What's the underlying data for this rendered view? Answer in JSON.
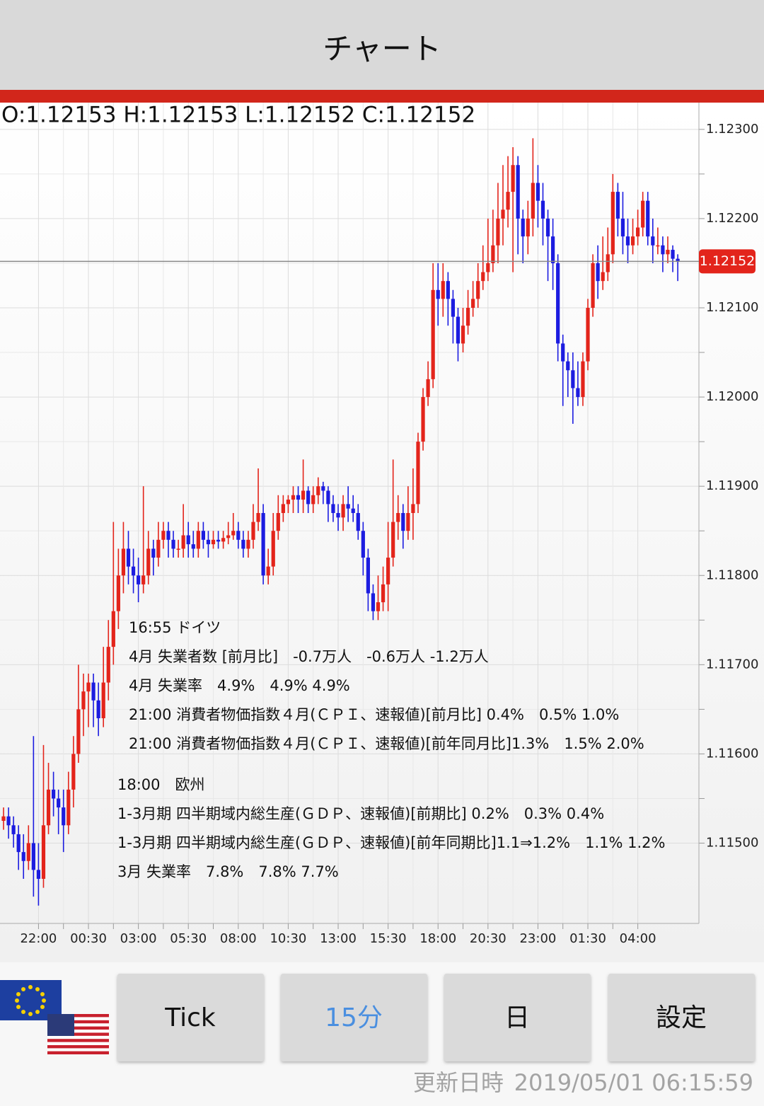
{
  "header": {
    "title": "チャート"
  },
  "chart_data": {
    "type": "candlestick",
    "ohlc_text": "O:1.12153 H:1.12153 L:1.12152 C:1.12152",
    "up_color": "#e3241b",
    "down_color": "#1c1ce0",
    "open": [
      1.11525,
      1.1153,
      1.1152,
      1.1151,
      1.1149,
      1.1148,
      1.115,
      1.1147,
      1.1146,
      1.1152,
      1.1156,
      1.1155,
      1.1154,
      1.1152,
      1.1156,
      1.116,
      1.1165,
      1.1167,
      1.1168,
      1.1166,
      1.1164,
      1.1168,
      1.1172,
      1.1176,
      1.118,
      1.1183,
      1.1181,
      1.118,
      1.1179,
      1.118,
      1.1183,
      1.1182,
      1.1184,
      1.1185,
      1.1184,
      1.1183,
      1.1183,
      1.11845,
      1.11835,
      1.1183,
      1.1185,
      1.1184,
      1.11835,
      1.1184,
      1.11838,
      1.11842,
      1.11845,
      1.1185,
      1.1184,
      1.1183,
      1.1184,
      1.1186,
      1.1187,
      1.118,
      1.1181,
      1.1185,
      1.1187,
      1.1188,
      1.11885,
      1.1189,
      1.11885,
      1.11895,
      1.1188,
      1.1189,
      1.119,
      1.11895,
      1.1188,
      1.1187,
      1.11865,
      1.1188,
      1.11875,
      1.1187,
      1.1185,
      1.1182,
      1.1178,
      1.1176,
      1.1177,
      1.1179,
      1.1182,
      1.1186,
      1.1187,
      1.1185,
      1.1187,
      1.1188,
      1.1195,
      1.12,
      1.1202,
      1.1212,
      1.1211,
      1.1213,
      1.1211,
      1.1209,
      1.1206,
      1.1208,
      1.121,
      1.1211,
      1.1213,
      1.1214,
      1.1215,
      1.1217,
      1.122,
      1.1221,
      1.1223,
      1.1226,
      1.122,
      1.1218,
      1.122,
      1.1224,
      1.1222,
      1.122,
      1.1218,
      1.1215,
      1.1206,
      1.1204,
      1.1203,
      1.1201,
      1.12,
      1.1204,
      1.121,
      1.1215,
      1.1213,
      1.1214,
      1.1216,
      1.1223,
      1.122,
      1.1218,
      1.1217,
      1.1218,
      1.1219,
      1.1222,
      1.1218,
      1.1217,
      1.1217,
      1.1216,
      1.12165,
      1.12155
    ],
    "high": [
      1.1154,
      1.1154,
      1.1153,
      1.1152,
      1.1151,
      1.1152,
      1.1162,
      1.115,
      1.1161,
      1.1159,
      1.1158,
      1.1156,
      1.1156,
      1.1158,
      1.1162,
      1.117,
      1.1169,
      1.1169,
      1.1169,
      1.1168,
      1.1172,
      1.1175,
      1.1186,
      1.1183,
      1.1186,
      1.1185,
      1.1183,
      1.1182,
      1.119,
      1.1185,
      1.1184,
      1.1186,
      1.1186,
      1.1186,
      1.1185,
      1.1184,
      1.1188,
      1.1186,
      1.1185,
      1.1186,
      1.1186,
      1.1185,
      1.1185,
      1.1185,
      1.1185,
      1.1186,
      1.1187,
      1.1186,
      1.1185,
      1.1185,
      1.1188,
      1.1192,
      1.1188,
      1.1183,
      1.1187,
      1.1189,
      1.1189,
      1.1189,
      1.119,
      1.119,
      1.1193,
      1.119,
      1.119,
      1.1191,
      1.11905,
      1.119,
      1.1189,
      1.1188,
      1.1189,
      1.119,
      1.1189,
      1.1188,
      1.1186,
      1.1183,
      1.1179,
      1.118,
      1.1181,
      1.1186,
      1.1193,
      1.1189,
      1.1188,
      1.119,
      1.1192,
      1.1196,
      1.1201,
      1.1204,
      1.1215,
      1.1215,
      1.1215,
      1.1214,
      1.1212,
      1.121,
      1.121,
      1.1212,
      1.1213,
      1.1215,
      1.1217,
      1.122,
      1.1221,
      1.1224,
      1.1226,
      1.1227,
      1.1228,
      1.1227,
      1.1221,
      1.1222,
      1.1229,
      1.1226,
      1.1224,
      1.1221,
      1.122,
      1.1216,
      1.1207,
      1.1205,
      1.1205,
      1.1204,
      1.1205,
      1.1211,
      1.1216,
      1.1217,
      1.1218,
      1.1219,
      1.1225,
      1.1224,
      1.1223,
      1.122,
      1.122,
      1.1221,
      1.1223,
      1.1223,
      1.122,
      1.1219,
      1.1218,
      1.1218,
      1.1217,
      1.1216
    ],
    "low": [
      1.11515,
      1.11505,
      1.11495,
      1.1147,
      1.1146,
      1.1147,
      1.1144,
      1.1143,
      1.1145,
      1.1151,
      1.1153,
      1.1151,
      1.1149,
      1.1151,
      1.1154,
      1.1159,
      1.1162,
      1.1163,
      1.1163,
      1.1162,
      1.1163,
      1.1166,
      1.117,
      1.1174,
      1.1178,
      1.1179,
      1.1178,
      1.1177,
      1.1178,
      1.1179,
      1.118,
      1.1181,
      1.1183,
      1.1182,
      1.1182,
      1.1182,
      1.1182,
      1.1182,
      1.1182,
      1.1182,
      1.1183,
      1.1182,
      1.1183,
      1.1183,
      1.1183,
      1.11835,
      1.1184,
      1.1183,
      1.1182,
      1.1182,
      1.1183,
      1.1185,
      1.1179,
      1.1179,
      1.118,
      1.1184,
      1.1186,
      1.1187,
      1.1187,
      1.1187,
      1.1187,
      1.1187,
      1.1187,
      1.1188,
      1.1188,
      1.1186,
      1.1186,
      1.1185,
      1.1185,
      1.1186,
      1.1186,
      1.1184,
      1.118,
      1.1176,
      1.1175,
      1.1175,
      1.1176,
      1.1176,
      1.1181,
      1.1184,
      1.1183,
      1.1184,
      1.1184,
      1.1187,
      1.1194,
      1.1199,
      1.1201,
      1.1208,
      1.1209,
      1.1208,
      1.1206,
      1.1204,
      1.1205,
      1.1207,
      1.1209,
      1.121,
      1.1212,
      1.1213,
      1.1214,
      1.1215,
      1.1217,
      1.1219,
      1.1214,
      1.1216,
      1.1215,
      1.1216,
      1.1218,
      1.1219,
      1.1217,
      1.1213,
      1.1212,
      1.1204,
      1.1199,
      1.12,
      1.1197,
      1.1199,
      1.1199,
      1.1203,
      1.1209,
      1.1211,
      1.1212,
      1.1213,
      1.1215,
      1.1218,
      1.1216,
      1.1215,
      1.1216,
      1.1217,
      1.1218,
      1.1217,
      1.1215,
      1.1216,
      1.1214,
      1.1215,
      1.1214,
      1.1213
    ],
    "close": [
      1.1153,
      1.1152,
      1.1151,
      1.1149,
      1.1148,
      1.115,
      1.1147,
      1.1146,
      1.1152,
      1.1156,
      1.1155,
      1.1154,
      1.1152,
      1.1156,
      1.116,
      1.1165,
      1.1167,
      1.1168,
      1.1166,
      1.1164,
      1.1168,
      1.1172,
      1.1176,
      1.118,
      1.1183,
      1.1181,
      1.118,
      1.1179,
      1.118,
      1.1183,
      1.1182,
      1.1184,
      1.1185,
      1.1184,
      1.1183,
      1.1183,
      1.11845,
      1.11835,
      1.1183,
      1.1185,
      1.1184,
      1.11835,
      1.1184,
      1.11838,
      1.11842,
      1.11845,
      1.1185,
      1.1184,
      1.1183,
      1.1184,
      1.1186,
      1.1187,
      1.118,
      1.1181,
      1.1185,
      1.1187,
      1.1188,
      1.11885,
      1.1189,
      1.11885,
      1.11895,
      1.1188,
      1.1189,
      1.119,
      1.11895,
      1.1188,
      1.1187,
      1.11865,
      1.1188,
      1.11875,
      1.1187,
      1.1185,
      1.1182,
      1.1178,
      1.1176,
      1.1177,
      1.1179,
      1.1182,
      1.1186,
      1.1187,
      1.1185,
      1.1187,
      1.1188,
      1.1195,
      1.12,
      1.1202,
      1.1212,
      1.1211,
      1.1213,
      1.1211,
      1.1209,
      1.1206,
      1.1208,
      1.121,
      1.1211,
      1.1213,
      1.1214,
      1.1215,
      1.1217,
      1.122,
      1.1221,
      1.1223,
      1.1226,
      1.122,
      1.1218,
      1.122,
      1.1224,
      1.1222,
      1.122,
      1.1218,
      1.1215,
      1.1206,
      1.1204,
      1.1203,
      1.1201,
      1.12,
      1.1204,
      1.121,
      1.1215,
      1.1213,
      1.1214,
      1.1216,
      1.1223,
      1.122,
      1.1218,
      1.1217,
      1.1218,
      1.1219,
      1.1222,
      1.1218,
      1.1217,
      1.1217,
      1.1216,
      1.12165,
      1.12155,
      1.12152
    ],
    "ylim": [
      1.1141,
      1.1233
    ],
    "yticks": [
      {
        "value": 1.115,
        "label": "1.11500"
      },
      {
        "value": 1.116,
        "label": "1.11600"
      },
      {
        "value": 1.117,
        "label": "1.11700"
      },
      {
        "value": 1.118,
        "label": "1.11800"
      },
      {
        "value": 1.119,
        "label": "1.11900"
      },
      {
        "value": 1.12,
        "label": "1.12000"
      },
      {
        "value": 1.121,
        "label": "1.12100"
      },
      {
        "value": 1.122,
        "label": "1.12200"
      },
      {
        "value": 1.123,
        "label": "1.12300"
      }
    ],
    "xticks": [
      {
        "value": 7,
        "label": "22:00"
      },
      {
        "value": 17,
        "label": "00:30"
      },
      {
        "value": 27,
        "label": "03:00"
      },
      {
        "value": 37,
        "label": "05:30"
      },
      {
        "value": 47,
        "label": "08:00"
      },
      {
        "value": 57,
        "label": "10:30"
      },
      {
        "value": 67,
        "label": "13:00"
      },
      {
        "value": 77,
        "label": "15:30"
      },
      {
        "value": 87,
        "label": "18:00"
      },
      {
        "value": 97,
        "label": "20:30"
      },
      {
        "value": 107,
        "label": "23:00"
      },
      {
        "value": 117,
        "label": "01:30"
      },
      {
        "value": 127,
        "label": "04:00"
      }
    ],
    "grid": true,
    "annotations": [
      [
        "16:55 ドイツ",
        "4月 失業者数 [前月比]　-0.7万人　-0.6万人 -1.2万人",
        "4月 失業率　4.9%　4.9% 4.9%",
        "21:00 消費者物価指数４月(ＣＰＩ、速報値)[前月比] 0.4%　0.5% 1.0%",
        "21:00 消費者物価指数４月(ＣＰＩ、速報値)[前年同月比]1.3%　1.5% 2.0%"
      ],
      [
        "18:00　欧州",
        "1-3月期 四半期域内総生産(ＧＤＰ、速報値)[前期比] 0.2%　0.3% 0.4%",
        "1-3月期 四半期域内総生産(ＧＤＰ、速報値)[前年同期比]1.1⇒1.2%　1.1% 1.2%",
        "3月 失業率　7.8%　7.8% 7.7%"
      ]
    ]
  },
  "buttons": [
    "Tick",
    "15分",
    "日",
    "設定"
  ],
  "footer": {
    "label": "更新日時",
    "timestamp": "2019/05/01 06:15:59"
  }
}
